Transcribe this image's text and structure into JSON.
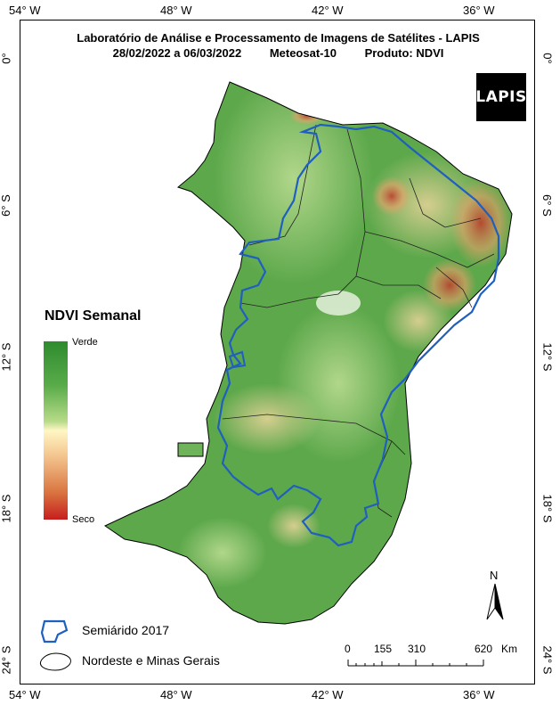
{
  "title": {
    "line1": "Laboratório de Análise e Processamento de Imagens de Satélites - LAPIS",
    "period": "28/02/2022  a  06/03/2022",
    "satellite": "Meteosat-10",
    "product": "Produto: NDVI"
  },
  "logo_text": "LAPIS",
  "longitude_labels": [
    "54° W",
    "48° W",
    "42° W",
    "36° W"
  ],
  "latitude_labels": [
    "0°",
    "6° S",
    "12° S",
    "18° S",
    "24° S"
  ],
  "legend": {
    "title": "NDVI Semanal",
    "high_label": "Verde",
    "low_label": "Seco",
    "items": [
      {
        "label": "Semiárido 2017",
        "color": "#1f5fbf"
      },
      {
        "label": "Nordeste e Minas Gerais",
        "color": "#000000"
      }
    ]
  },
  "scale_bar": {
    "ticks": [
      "0",
      "155",
      "310",
      "620"
    ],
    "unit": "Km"
  },
  "north_label": "N",
  "colors": {
    "ndvi_high": "#2e8b2e",
    "ndvi_mid": "#fff7c4",
    "ndvi_low": "#c61e1e",
    "semiarid_outline": "#1f5fbf"
  }
}
